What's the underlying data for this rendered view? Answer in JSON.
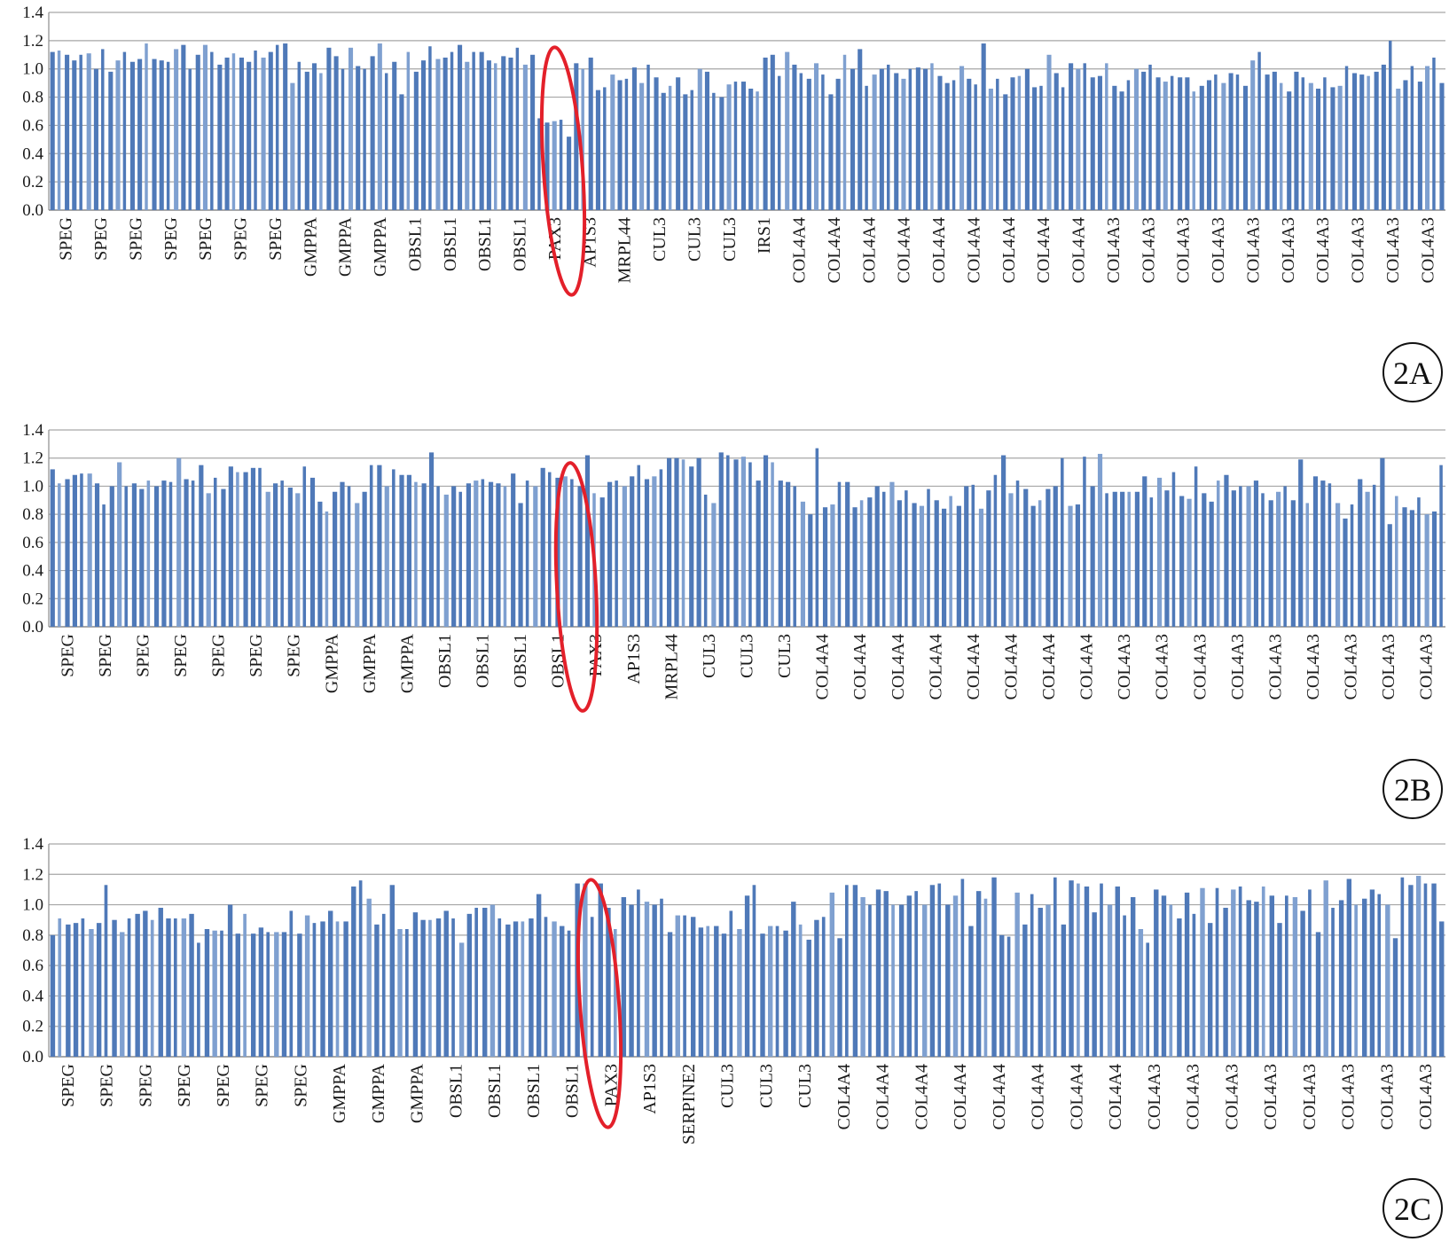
{
  "chart_data": [
    {
      "type": "bar",
      "panel_label": "2A",
      "ylim": [
        0,
        1.4
      ],
      "yticks": [
        "0.0",
        "0.2",
        "0.4",
        "0.6",
        "0.8",
        "1.0",
        "1.2",
        "1.4"
      ],
      "grid": true,
      "tick_labels": [
        "SPEG",
        "SPEG",
        "SPEG",
        "SPEG",
        "SPEG",
        "SPEG",
        "SPEG",
        "GMPPA",
        "GMPPA",
        "GMPPA",
        "OBSL1",
        "OBSL1",
        "OBSL1",
        "OBSL1",
        "PAX3",
        "AP1S3",
        "MRPL44",
        "CUL3",
        "CUL3",
        "CUL3",
        "IRS1",
        "COL4A4",
        "COL4A4",
        "COL4A4",
        "COL4A4",
        "COL4A4",
        "COL4A4",
        "COL4A4",
        "COL4A4",
        "COL4A4",
        "COL4A3",
        "COL4A3",
        "COL4A3",
        "COL4A3",
        "COL4A3",
        "COL4A3",
        "COL4A3",
        "COL4A3",
        "COL4A3",
        "COL4A3"
      ],
      "values": [
        1.12,
        1.13,
        1.1,
        1.06,
        1.1,
        1.11,
        1.0,
        1.14,
        0.98,
        1.06,
        1.12,
        1.05,
        1.07,
        1.18,
        1.07,
        1.06,
        1.05,
        1.14,
        1.17,
        1.0,
        1.1,
        1.17,
        1.12,
        1.03,
        1.08,
        1.11,
        1.08,
        1.05,
        1.13,
        1.08,
        1.12,
        1.17,
        1.18,
        0.9,
        1.05,
        0.98,
        1.04,
        0.97,
        1.15,
        1.09,
        1.0,
        1.15,
        1.02,
        1.0,
        1.09,
        1.18,
        0.97,
        1.05,
        0.82,
        1.12,
        0.98,
        1.06,
        1.16,
        1.07,
        1.08,
        1.12,
        1.17,
        1.05,
        1.12,
        1.12,
        1.06,
        1.04,
        1.09,
        1.08,
        1.15,
        1.03,
        1.1,
        0.65,
        0.62,
        0.63,
        0.64,
        0.52,
        1.04,
        1.0,
        1.08,
        0.85,
        0.87,
        0.96,
        0.92,
        0.93,
        1.01,
        0.9,
        1.03,
        0.94,
        0.83,
        0.88,
        0.94,
        0.82,
        0.85,
        1.0,
        0.98,
        0.83,
        0.8,
        0.89,
        0.91,
        0.91,
        0.86,
        0.84,
        1.08,
        1.1,
        0.95,
        1.12,
        1.03,
        0.97,
        0.93,
        1.04,
        0.96,
        0.82,
        0.93,
        1.1,
        1.0,
        1.14,
        0.88,
        0.96,
        1.0,
        1.03,
        0.97,
        0.93,
        1.0,
        1.01,
        1.0,
        1.04,
        0.95,
        0.9,
        0.92,
        1.02,
        0.93,
        0.89,
        1.18,
        0.86,
        0.93,
        0.82,
        0.94,
        0.95,
        1.0,
        0.87,
        0.88,
        1.1,
        0.97,
        0.87,
        1.04,
        1.0,
        1.04,
        0.94,
        0.95,
        1.04,
        0.88,
        0.84,
        0.92,
        1.0,
        0.98,
        1.03,
        0.94,
        0.91,
        0.95,
        0.94,
        0.94,
        0.84,
        0.88,
        0.92,
        0.96,
        0.9,
        0.97,
        0.96,
        0.88,
        1.06,
        1.12,
        0.96,
        0.98,
        0.9,
        0.84,
        0.98,
        0.94,
        0.9,
        0.86,
        0.94,
        0.87,
        0.88,
        1.02,
        0.97,
        0.96,
        0.95,
        0.98,
        1.03,
        1.2,
        0.86,
        0.92,
        1.02,
        0.91,
        1.02,
        1.08,
        0.9
      ]
    },
    {
      "type": "bar",
      "panel_label": "2B",
      "ylim": [
        0,
        1.4
      ],
      "yticks": [
        "0.0",
        "0.2",
        "0.4",
        "0.6",
        "0.8",
        "1.0",
        "1.2",
        "1.4"
      ],
      "grid": true,
      "tick_labels": [
        "SPEG",
        "SPEG",
        "SPEG",
        "SPEG",
        "SPEG",
        "SPEG",
        "SPEG",
        "GMPPA",
        "GMPPA",
        "GMPPA",
        "OBSL1",
        "OBSL1",
        "OBSL1",
        "OBSL1",
        "PAX3",
        "AP1S3",
        "MRPL44",
        "CUL3",
        "CUL3",
        "CUL3",
        "COL4A4",
        "COL4A4",
        "COL4A4",
        "COL4A4",
        "COL4A4",
        "COL4A4",
        "COL4A4",
        "COL4A4",
        "COL4A3",
        "COL4A3",
        "COL4A3",
        "COL4A3",
        "COL4A3",
        "COL4A3",
        "COL4A3",
        "COL4A3",
        "COL4A3"
      ],
      "values": [
        1.12,
        1.02,
        1.05,
        1.08,
        1.09,
        1.09,
        1.02,
        0.87,
        1.0,
        1.17,
        1.0,
        1.02,
        0.98,
        1.04,
        1.0,
        1.04,
        1.03,
        1.2,
        1.05,
        1.04,
        1.15,
        0.95,
        1.06,
        0.98,
        1.14,
        1.1,
        1.1,
        1.13,
        1.13,
        0.96,
        1.02,
        1.04,
        0.99,
        0.95,
        1.14,
        1.06,
        0.89,
        0.82,
        0.96,
        1.03,
        1.0,
        0.88,
        0.96,
        1.15,
        1.15,
        1.0,
        1.12,
        1.08,
        1.08,
        1.03,
        1.02,
        1.24,
        1.0,
        0.94,
        1.0,
        0.96,
        1.02,
        1.04,
        1.05,
        1.03,
        1.02,
        1.0,
        1.09,
        0.88,
        1.04,
        1.0,
        1.13,
        1.1,
        1.06,
        1.07,
        1.05,
        1.0,
        1.22,
        0.95,
        0.92,
        1.03,
        1.04,
        1.0,
        1.07,
        1.15,
        1.05,
        1.07,
        1.12,
        1.2,
        1.2,
        1.19,
        1.14,
        1.2,
        0.94,
        0.88,
        1.24,
        1.22,
        1.19,
        1.21,
        1.17,
        1.04,
        1.22,
        1.17,
        1.04,
        1.03,
        1.0,
        0.89,
        0.8,
        1.27,
        0.85,
        0.87,
        1.03,
        1.03,
        0.85,
        0.9,
        0.92,
        1.0,
        0.96,
        1.03,
        0.9,
        0.97,
        0.88,
        0.86,
        0.98,
        0.9,
        0.84,
        0.93,
        0.86,
        1.0,
        1.01,
        0.84,
        0.97,
        1.08,
        1.22,
        0.95,
        1.04,
        0.98,
        0.86,
        0.9,
        0.98,
        1.0,
        1.2,
        0.86,
        0.87,
        1.21,
        1.0,
        1.23,
        0.95,
        0.96,
        0.96,
        0.96,
        0.96,
        1.07,
        0.92,
        1.06,
        0.97,
        1.1,
        0.93,
        0.91,
        1.14,
        0.95,
        0.89,
        1.04,
        1.08,
        0.97,
        1.0,
        1.0,
        1.04,
        0.95,
        0.9,
        0.96,
        1.0,
        0.9,
        1.19,
        0.88,
        1.07,
        1.04,
        1.02,
        0.88,
        0.77,
        0.87,
        1.05,
        0.96,
        1.01,
        1.2,
        0.73,
        0.93,
        0.85,
        0.83,
        0.92,
        0.8,
        0.82,
        1.15
      ]
    },
    {
      "type": "bar",
      "panel_label": "2C",
      "ylim": [
        0,
        1.4
      ],
      "yticks": [
        "0.0",
        "0.2",
        "0.4",
        "0.6",
        "0.8",
        "1.0",
        "1.2",
        "1.4"
      ],
      "grid": true,
      "tick_labels": [
        "SPEG",
        "SPEG",
        "SPEG",
        "SPEG",
        "SPEG",
        "SPEG",
        "SPEG",
        "GMPPA",
        "GMPPA",
        "GMPPA",
        "OBSL1",
        "OBSL1",
        "OBSL1",
        "OBSL1",
        "PAX3",
        "AP1S3",
        "SERPINE2",
        "CUL3",
        "CUL3",
        "CUL3",
        "COL4A4",
        "COL4A4",
        "COL4A4",
        "COL4A4",
        "COL4A4",
        "COL4A4",
        "COL4A4",
        "COL4A4",
        "COL4A3",
        "COL4A3",
        "COL4A3",
        "COL4A3",
        "COL4A3",
        "COL4A3",
        "COL4A3",
        "COL4A3"
      ],
      "values": [
        0.8,
        0.91,
        0.87,
        0.88,
        0.91,
        0.84,
        0.88,
        1.13,
        0.9,
        0.82,
        0.91,
        0.94,
        0.96,
        0.9,
        0.98,
        0.91,
        0.91,
        0.91,
        0.94,
        0.75,
        0.84,
        0.83,
        0.83,
        1.0,
        0.81,
        0.94,
        0.81,
        0.85,
        0.82,
        0.82,
        0.82,
        0.96,
        0.81,
        0.93,
        0.88,
        0.89,
        0.96,
        0.89,
        0.89,
        1.12,
        1.16,
        1.04,
        0.87,
        0.94,
        1.13,
        0.84,
        0.84,
        0.95,
        0.9,
        0.9,
        0.91,
        0.96,
        0.91,
        0.75,
        0.94,
        0.98,
        0.98,
        1.0,
        0.91,
        0.87,
        0.89,
        0.89,
        0.91,
        1.07,
        0.92,
        0.89,
        0.86,
        0.83,
        1.14,
        1.14,
        0.92,
        1.14,
        0.98,
        0.84,
        1.05,
        1.0,
        1.1,
        1.02,
        1.0,
        1.04,
        0.82,
        0.93,
        0.93,
        0.92,
        0.85,
        0.86,
        0.86,
        0.81,
        0.96,
        0.84,
        1.06,
        1.13,
        0.81,
        0.86,
        0.86,
        0.83,
        1.02,
        0.87,
        0.77,
        0.9,
        0.92,
        1.08,
        0.78,
        1.13,
        1.13,
        1.05,
        1.0,
        1.1,
        1.09,
        1.0,
        1.0,
        1.06,
        1.09,
        1.0,
        1.13,
        1.14,
        1.0,
        1.06,
        1.17,
        0.86,
        1.09,
        1.04,
        1.18,
        0.8,
        0.79,
        1.08,
        0.87,
        1.07,
        0.98,
        1.0,
        1.18,
        0.87,
        1.16,
        1.14,
        1.12,
        0.95,
        1.14,
        1.0,
        1.12,
        0.93,
        1.05,
        0.84,
        0.75,
        1.1,
        1.06,
        1.0,
        0.91,
        1.08,
        0.94,
        1.11,
        0.88,
        1.11,
        0.98,
        1.1,
        1.12,
        1.03,
        1.02,
        1.12,
        1.06,
        0.88,
        1.06,
        1.05,
        0.96,
        1.1,
        0.82,
        1.16,
        0.98,
        1.03,
        1.17,
        1.0,
        1.04,
        1.1,
        1.07,
        1.0,
        0.78,
        1.18,
        1.13,
        1.19,
        1.14,
        1.14,
        0.89
      ]
    }
  ],
  "annotations": [
    {
      "type": "red-ellipse",
      "target": "PAX3",
      "panel": "2A"
    },
    {
      "type": "red-ellipse",
      "target": "PAX3",
      "panel": "2B"
    },
    {
      "type": "red-ellipse",
      "target": "PAX3",
      "panel": "2C"
    }
  ],
  "colors": {
    "bar": "#4f79b8",
    "bar_light": "#7fa0d0",
    "grid": "#a6a6a6",
    "axis": "#8c8c8c",
    "highlight": "#e3202a"
  }
}
